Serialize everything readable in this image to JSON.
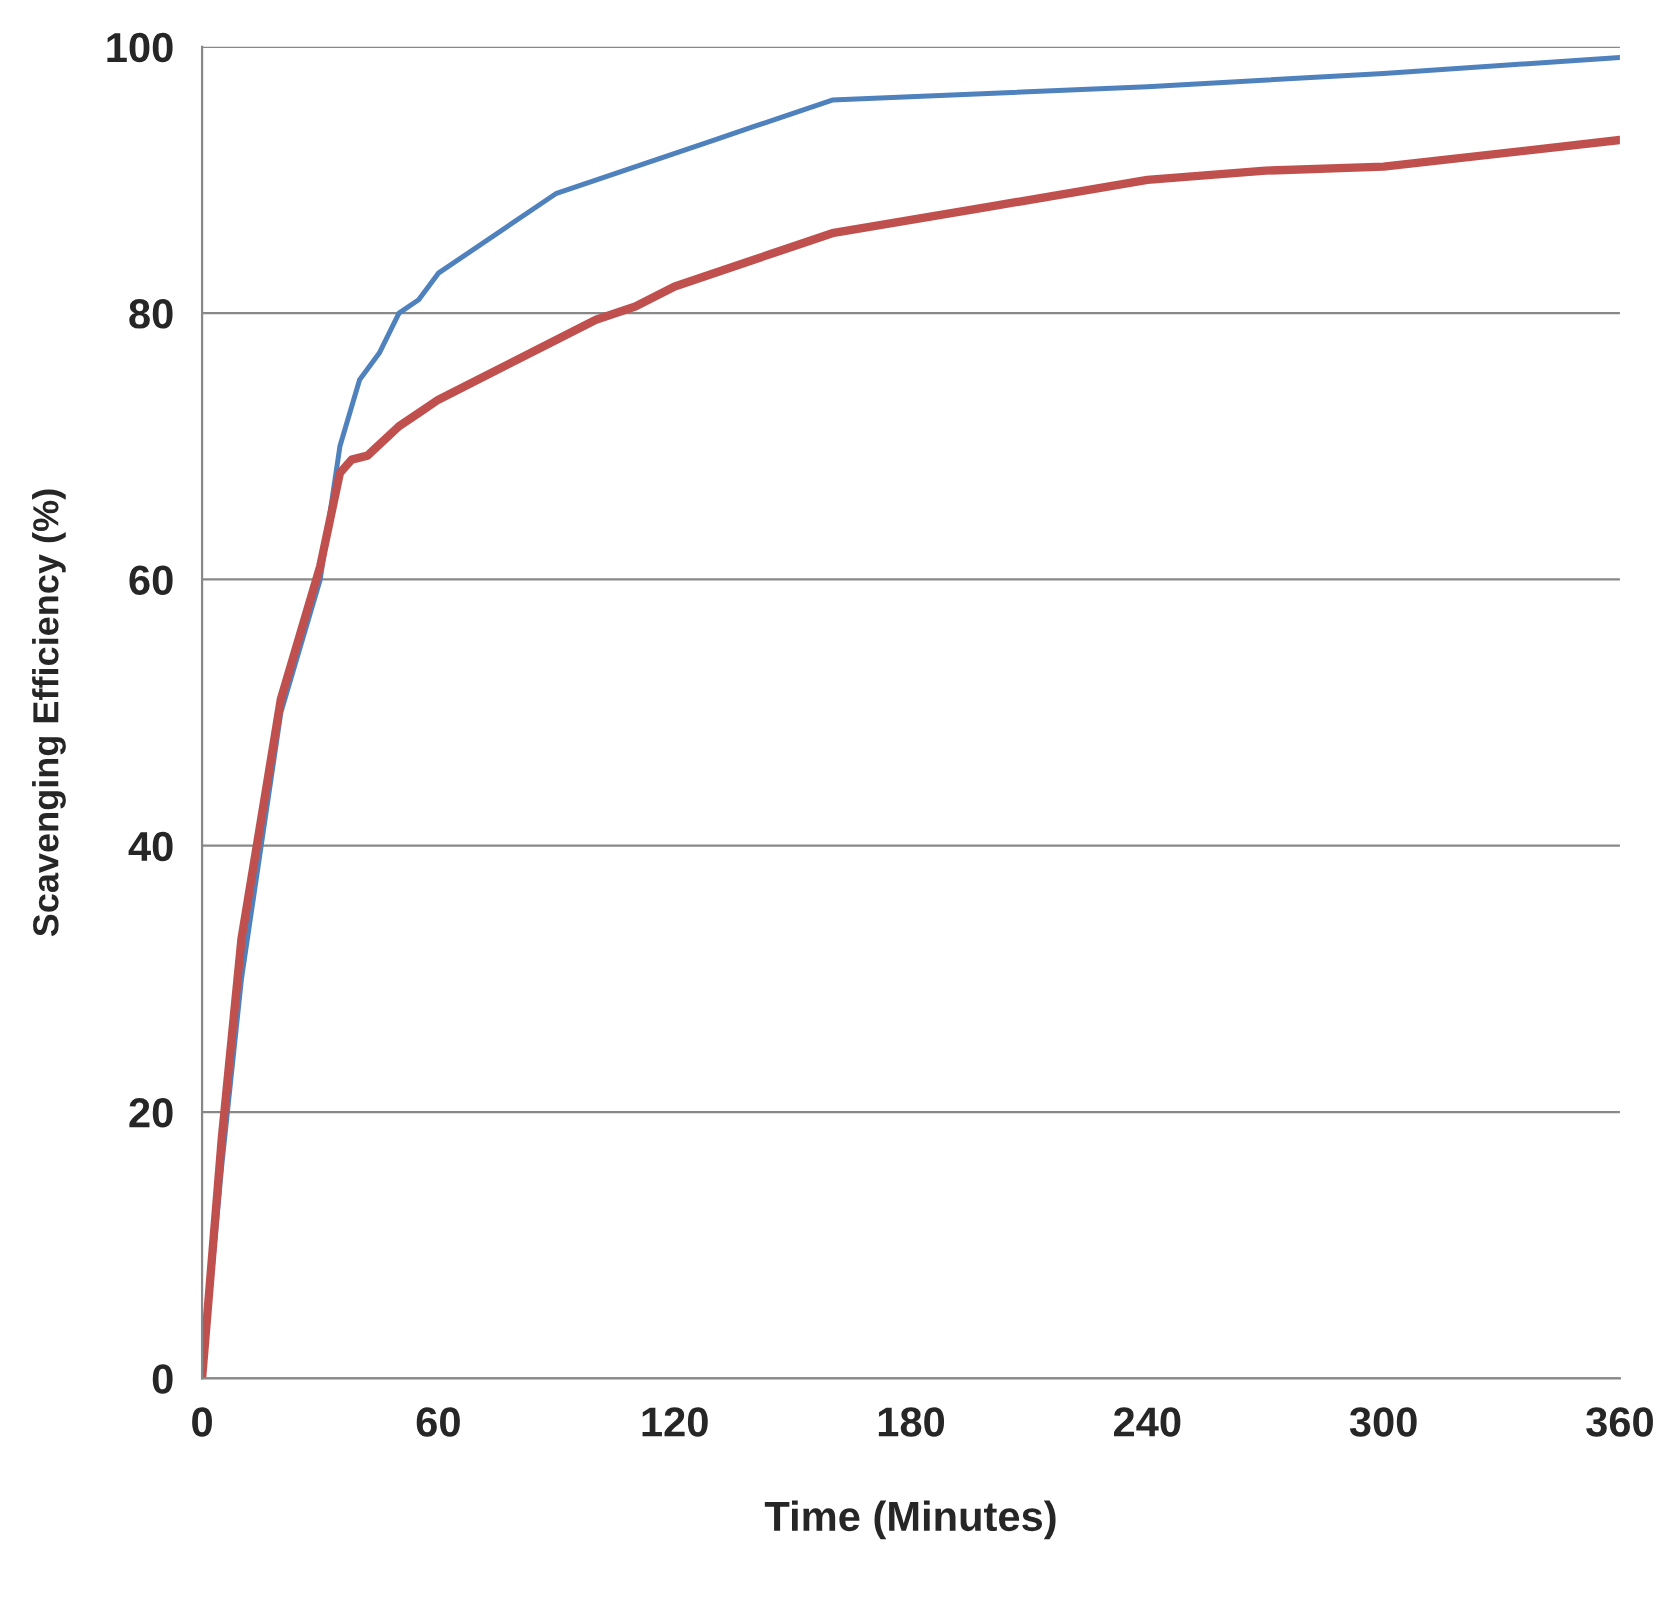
{
  "chart_data": {
    "type": "line",
    "xlabel": "Time (Minutes)",
    "ylabel": "Scavenging Efficiency (%)",
    "xlim": [
      0,
      360
    ],
    "xticks": [
      0,
      60,
      120,
      180,
      240,
      300,
      360
    ],
    "ylim": [
      0,
      100
    ],
    "yticks": [
      0,
      20,
      40,
      60,
      80,
      100
    ],
    "grid": "y",
    "legend": false,
    "marker": "none",
    "line_style": "solid",
    "series": [
      {
        "color": "#4f81bd",
        "x": [
          0,
          5,
          10,
          20,
          30,
          35,
          40,
          45,
          50,
          55,
          60,
          90,
          130,
          140,
          160,
          240,
          300,
          360
        ],
        "values": [
          0,
          16,
          30,
          50,
          60,
          70,
          75,
          77,
          80,
          81,
          83,
          89,
          93,
          94,
          96,
          97,
          98,
          99.2
        ]
      },
      {
        "color": "#c0504d",
        "x": [
          0,
          5,
          10,
          20,
          30,
          35,
          38,
          42,
          50,
          55,
          60,
          90,
          100,
          110,
          120,
          160,
          200,
          240,
          270,
          300,
          360
        ],
        "values": [
          0,
          18,
          33,
          51,
          61,
          68,
          69,
          69.3,
          71.5,
          72.5,
          73.5,
          78,
          79.5,
          80.5,
          82,
          86,
          88,
          90,
          90.7,
          91,
          93
        ]
      }
    ]
  }
}
